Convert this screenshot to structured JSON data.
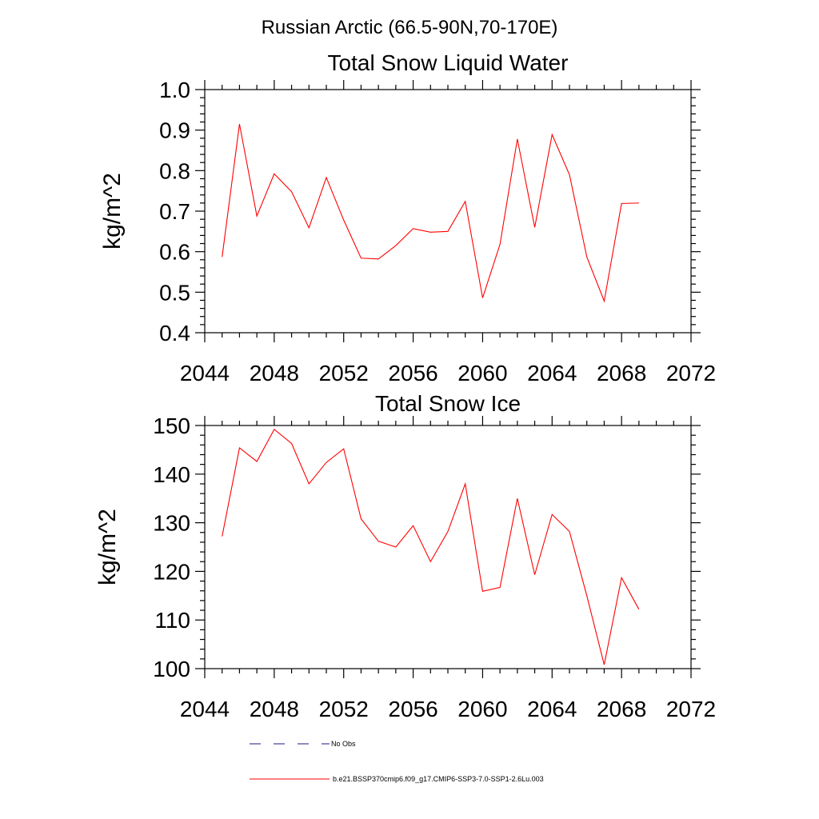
{
  "figure": {
    "suptitle": "Russian Arctic (66.5-90N,70-170E)"
  },
  "colors": {
    "model": "#ff0000",
    "obs": "#1a1a80"
  },
  "legend": {
    "placement": "bottom",
    "entries": [
      {
        "label": "No Obs",
        "style": "dashed",
        "color": "#1a1a80"
      },
      {
        "label": "b.e21.BSSP370cmip6.f09_g17.CMIP6-SSP3-7.0-SSP1-2.6Lu.003",
        "style": "solid",
        "color": "#ff0000"
      }
    ]
  },
  "chart_data": [
    {
      "type": "line",
      "title": "Total Snow Liquid Water",
      "ylabel": "kg/m^2",
      "xlim": [
        2044,
        2072
      ],
      "ylim": [
        0.4,
        1.0
      ],
      "xticks": [
        2044,
        2048,
        2052,
        2056,
        2060,
        2064,
        2068,
        2072
      ],
      "yticks": [
        0.4,
        0.5,
        0.6,
        0.7,
        0.8,
        0.9,
        1.0
      ],
      "ytick_labels": [
        "0.4",
        "0.5",
        "0.6",
        "0.7",
        "0.8",
        "0.9",
        "1.0"
      ],
      "grid": false,
      "x": [
        2045,
        2046,
        2047,
        2048,
        2049,
        2050,
        2051,
        2052,
        2053,
        2054,
        2055,
        2056,
        2057,
        2058,
        2059,
        2060,
        2061,
        2062,
        2063,
        2064,
        2065,
        2066,
        2067,
        2068,
        2069
      ],
      "series": [
        {
          "name": "b.e21.BSSP370cmip6.f09_g17.CMIP6-SSP3-7.0-SSP1-2.6Lu.003",
          "values": [
            0.587,
            0.915,
            0.688,
            0.792,
            0.748,
            0.659,
            0.783,
            0.678,
            0.584,
            0.582,
            0.615,
            0.657,
            0.648,
            0.65,
            0.724,
            0.486,
            0.618,
            0.878,
            0.66,
            0.889,
            0.79,
            0.587,
            0.478,
            0.719,
            0.72
          ]
        }
      ]
    },
    {
      "type": "line",
      "title": "Total Snow Ice",
      "ylabel": "kg/m^2",
      "xlim": [
        2044,
        2072
      ],
      "ylim": [
        100,
        150
      ],
      "xticks": [
        2044,
        2048,
        2052,
        2056,
        2060,
        2064,
        2068,
        2072
      ],
      "yticks": [
        100,
        110,
        120,
        130,
        140,
        150
      ],
      "ytick_labels": [
        "100",
        "110",
        "120",
        "130",
        "140",
        "150"
      ],
      "grid": false,
      "x": [
        2045,
        2046,
        2047,
        2048,
        2049,
        2050,
        2051,
        2052,
        2053,
        2054,
        2055,
        2056,
        2057,
        2058,
        2059,
        2060,
        2061,
        2062,
        2063,
        2064,
        2065,
        2066,
        2067,
        2068,
        2069
      ],
      "series": [
        {
          "name": "b.e21.BSSP370cmip6.f09_g17.CMIP6-SSP3-7.0-SSP1-2.6Lu.003",
          "values": [
            127.2,
            145.4,
            142.6,
            149.2,
            146.3,
            138.0,
            142.4,
            145.2,
            130.8,
            126.2,
            125.0,
            129.4,
            122.0,
            128.2,
            138.0,
            115.9,
            116.7,
            135.0,
            119.3,
            131.7,
            128.2,
            115.0,
            100.8,
            118.7,
            112.2
          ]
        }
      ]
    }
  ]
}
